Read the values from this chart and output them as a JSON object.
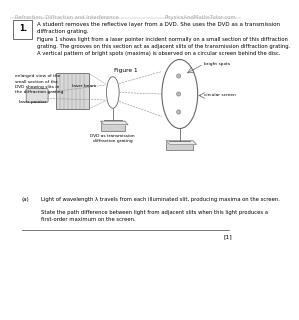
{
  "header_left": "Refraction, Diffraction and Interference",
  "header_right": "PhysicsAndMathsTutor.com",
  "question_number": "1.",
  "question_text": "A student removes the reflective layer from a DVD. She uses the DVD as a transmission\ndiffraction grating.",
  "figure_label": "Figure 1",
  "figure_caption": "Figure 1 shows light from a laser pointer incident normally on a small section of this diffraction\ngrating. The grooves on this section act as adjacent slits of the transmission diffraction grating.\nA vertical pattern of bright spots (maxima) is observed on a circular screen behind the disc.",
  "label_enlarged": "enlarged view of the\nsmall section of the\nDVD showing slits in\nthe diffraction grating",
  "label_laser_beam": "laser beam",
  "label_laser_pointer": "laser pointer",
  "label_dvd": "DVD as transmission\ndiffraction grating",
  "label_bright_spots": "bright spots",
  "label_circular_screen": "circular screen",
  "part_a_label": "(a)",
  "part_a_text": "Light of wavelength λ travels from each illuminated slit, producing maxima on the screen.",
  "part_a_subtext": "State the path difference between light from adjacent slits when this light produces a\nfirst-order maximum on the screen.",
  "footer_mark": "[1]",
  "bg": "#ffffff",
  "tc": "#000000",
  "hc": "#aaaaaa",
  "lc": "#666666"
}
